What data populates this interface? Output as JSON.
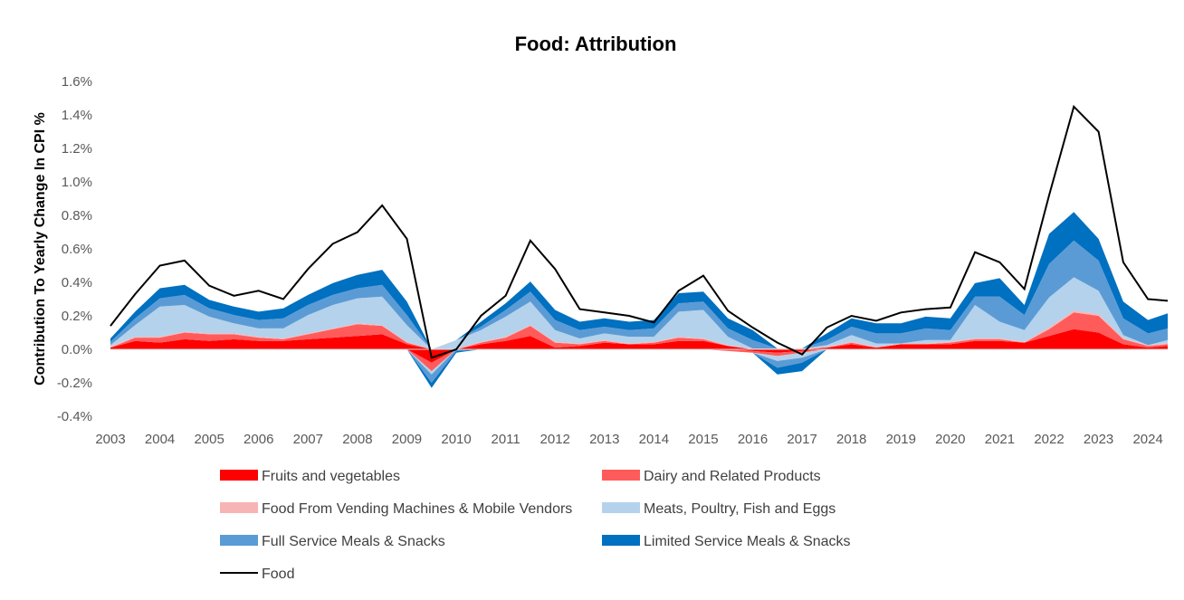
{
  "chart_data": {
    "type": "area",
    "title": "Food: Attribution",
    "ylabel": "Contribution To Yearly Change In CPI %",
    "xlabel": "",
    "ylim": [
      -0.4,
      1.6
    ],
    "yticks": [
      "-0.4%",
      "-0.2%",
      "0.0%",
      "0.2%",
      "0.4%",
      "0.6%",
      "0.8%",
      "1.0%",
      "1.2%",
      "1.4%",
      "1.6%"
    ],
    "xticks": [
      "2003",
      "2004",
      "2005",
      "2006",
      "2007",
      "2008",
      "2009",
      "2010",
      "2011",
      "2012",
      "2013",
      "2014",
      "2015",
      "2016",
      "2017",
      "2018",
      "2019",
      "2020",
      "2021",
      "2022",
      "2023",
      "2024"
    ],
    "x": [
      2003.0,
      2003.5,
      2004.0,
      2004.5,
      2005.0,
      2005.5,
      2006.0,
      2006.5,
      2007.0,
      2007.5,
      2008.0,
      2008.5,
      2009.0,
      2009.5,
      2010.0,
      2010.5,
      2011.0,
      2011.5,
      2012.0,
      2012.5,
      2013.0,
      2013.5,
      2014.0,
      2014.5,
      2015.0,
      2015.5,
      2016.0,
      2016.5,
      2017.0,
      2017.5,
      2018.0,
      2018.5,
      2019.0,
      2019.5,
      2020.0,
      2020.5,
      2021.0,
      2021.5,
      2022.0,
      2022.5,
      2023.0,
      2023.5,
      2024.0,
      2024.5
    ],
    "series": [
      {
        "name": "Fruits and vegetables",
        "color": "#FF0000",
        "values": [
          0.01,
          0.05,
          0.04,
          0.06,
          0.05,
          0.06,
          0.05,
          0.05,
          0.06,
          0.07,
          0.08,
          0.09,
          0.03,
          -0.08,
          0.0,
          0.03,
          0.05,
          0.08,
          0.01,
          0.02,
          0.04,
          0.03,
          0.03,
          0.05,
          0.05,
          0.02,
          -0.01,
          -0.02,
          -0.01,
          0.01,
          0.03,
          0.01,
          0.03,
          0.03,
          0.03,
          0.05,
          0.05,
          0.04,
          0.08,
          0.12,
          0.1,
          0.03,
          0.01,
          0.02
        ]
      },
      {
        "name": "Dairy and Related Products",
        "color": "#FF5B5B",
        "values": [
          0.0,
          0.02,
          0.03,
          0.04,
          0.04,
          0.03,
          0.02,
          0.01,
          0.03,
          0.05,
          0.07,
          0.05,
          0.01,
          -0.05,
          0.0,
          0.01,
          0.02,
          0.06,
          0.03,
          0.01,
          0.01,
          0.0,
          0.01,
          0.02,
          0.01,
          -0.01,
          -0.01,
          -0.02,
          -0.01,
          0.0,
          0.01,
          0.0,
          0.0,
          0.0,
          0.01,
          0.01,
          0.01,
          0.0,
          0.04,
          0.1,
          0.1,
          0.03,
          0.01,
          0.01
        ]
      },
      {
        "name": "Food From Vending Machines & Mobile Vendors",
        "color": "#F8B4B4",
        "values": [
          0.005,
          0.005,
          0.005,
          0.005,
          0.005,
          0.005,
          0.005,
          0.005,
          0.005,
          0.005,
          0.005,
          0.005,
          0.005,
          0.0,
          0.005,
          0.005,
          0.005,
          0.005,
          0.005,
          0.005,
          0.005,
          0.005,
          0.005,
          0.005,
          0.005,
          0.005,
          0.005,
          0.005,
          0.005,
          0.005,
          0.005,
          0.005,
          0.005,
          0.005,
          0.005,
          0.005,
          0.005,
          0.005,
          0.01,
          0.01,
          0.01,
          0.005,
          0.005,
          0.005
        ]
      },
      {
        "name": "Meats, Poultry, Fish and Eggs",
        "color": "#B4D2EB",
        "values": [
          0.01,
          0.07,
          0.18,
          0.16,
          0.1,
          0.06,
          0.05,
          0.06,
          0.11,
          0.14,
          0.15,
          0.17,
          0.1,
          -0.02,
          0.05,
          0.07,
          0.12,
          0.14,
          0.07,
          0.03,
          0.04,
          0.04,
          0.03,
          0.15,
          0.17,
          0.05,
          0.0,
          -0.03,
          -0.03,
          0.01,
          0.04,
          0.02,
          0.0,
          0.02,
          0.01,
          0.2,
          0.1,
          0.07,
          0.18,
          0.2,
          0.14,
          0.02,
          0.0,
          0.02
        ]
      },
      {
        "name": "Full Service Meals & Snacks",
        "color": "#5B9BD5",
        "values": [
          0.02,
          0.04,
          0.05,
          0.06,
          0.05,
          0.05,
          0.05,
          0.06,
          0.06,
          0.06,
          0.06,
          0.07,
          0.06,
          -0.05,
          -0.01,
          0.02,
          0.04,
          0.06,
          0.06,
          0.05,
          0.04,
          0.04,
          0.05,
          0.05,
          0.05,
          0.05,
          0.05,
          -0.04,
          -0.03,
          0.03,
          0.05,
          0.06,
          0.06,
          0.07,
          0.06,
          0.05,
          0.15,
          0.09,
          0.2,
          0.22,
          0.18,
          0.1,
          0.07,
          0.07
        ]
      },
      {
        "name": "Limited Service Meals & Snacks",
        "color": "#0070C0",
        "values": [
          0.02,
          0.04,
          0.06,
          0.06,
          0.05,
          0.05,
          0.05,
          0.06,
          0.06,
          0.07,
          0.08,
          0.09,
          0.08,
          -0.03,
          -0.01,
          0.03,
          0.04,
          0.06,
          0.06,
          0.05,
          0.05,
          0.05,
          0.05,
          0.06,
          0.06,
          0.06,
          0.06,
          -0.04,
          -0.05,
          0.04,
          0.05,
          0.06,
          0.06,
          0.07,
          0.07,
          0.08,
          0.11,
          0.06,
          0.18,
          0.17,
          0.13,
          0.1,
          0.08,
          0.09
        ]
      },
      {
        "name": "Food",
        "color": "#000000",
        "type": "line",
        "values": [
          0.14,
          0.33,
          0.5,
          0.53,
          0.38,
          0.32,
          0.35,
          0.3,
          0.48,
          0.63,
          0.7,
          0.86,
          0.66,
          -0.05,
          0.0,
          0.2,
          0.32,
          0.65,
          0.48,
          0.24,
          0.22,
          0.2,
          0.16,
          0.35,
          0.44,
          0.23,
          0.13,
          0.04,
          -0.03,
          0.13,
          0.2,
          0.17,
          0.22,
          0.24,
          0.25,
          0.58,
          0.52,
          0.36,
          0.92,
          1.45,
          1.3,
          0.52,
          0.3,
          0.29
        ]
      }
    ],
    "legend": {
      "position": "bottom"
    },
    "grid": false
  }
}
